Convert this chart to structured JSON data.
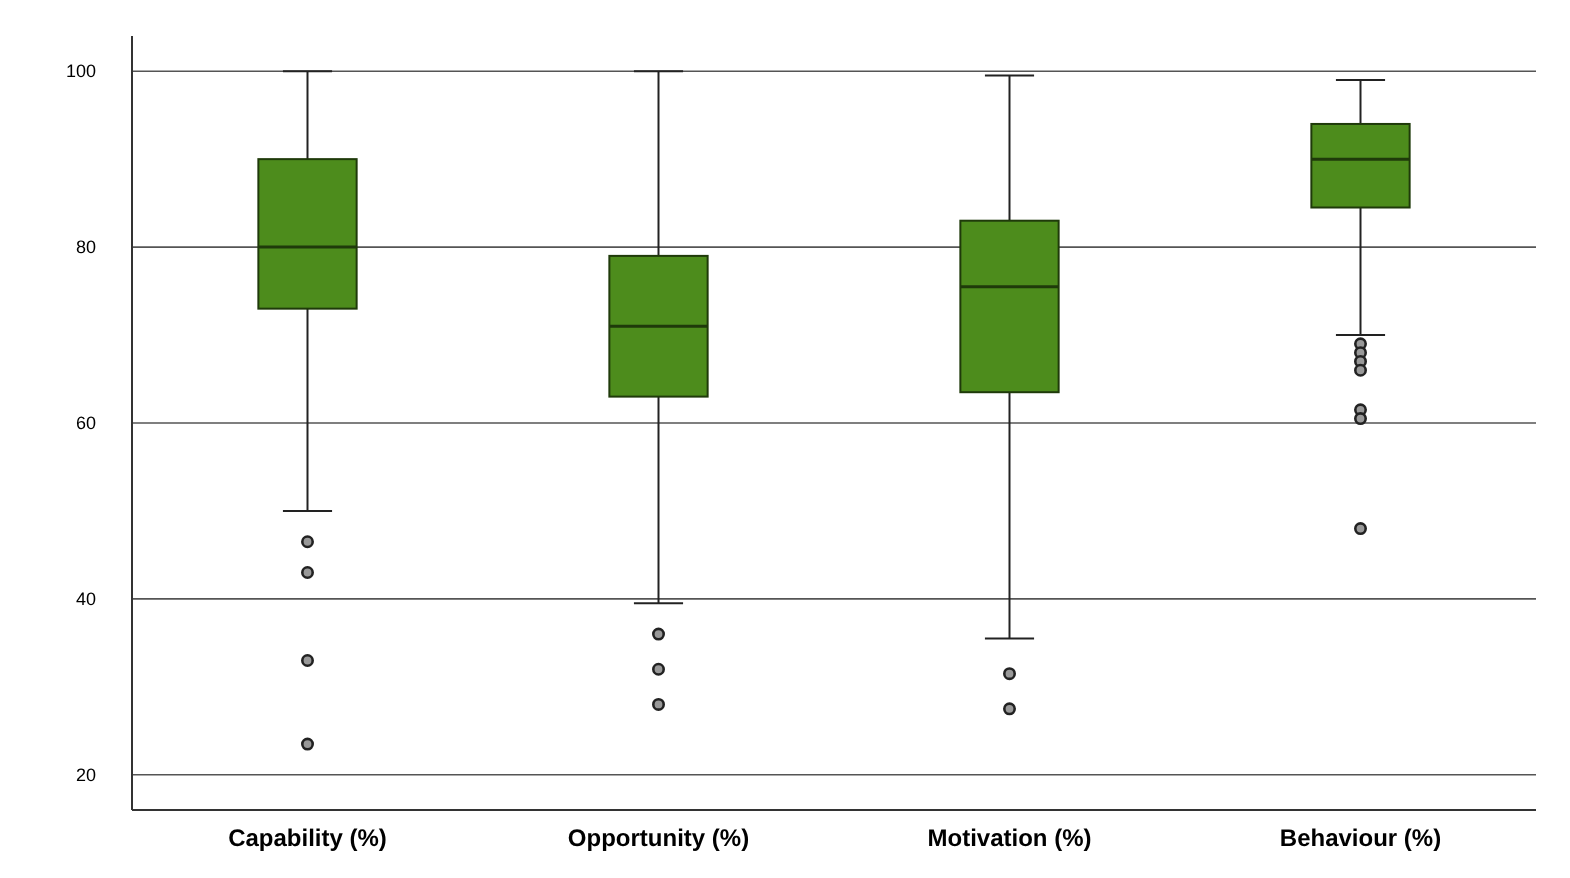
{
  "chart_data": {
    "type": "box",
    "categories": [
      "Capability (%)",
      "Opportunity (%)",
      "Motivation (%)",
      "Behaviour (%)"
    ],
    "boxes": [
      {
        "low": 50,
        "q1": 73,
        "median": 80,
        "q3": 90,
        "high": 100,
        "outliers": [
          46.5,
          43,
          33,
          23.5
        ]
      },
      {
        "low": 39.5,
        "q1": 63,
        "median": 71,
        "q3": 79,
        "high": 100,
        "outliers": [
          36,
          32,
          28
        ]
      },
      {
        "low": 35.5,
        "q1": 63.5,
        "median": 75.5,
        "q3": 83,
        "high": 99.5,
        "outliers": [
          31.5,
          27.5
        ]
      },
      {
        "low": 70,
        "q1": 84.5,
        "median": 90,
        "q3": 94,
        "high": 99,
        "outliers": [
          69,
          68,
          67,
          66,
          61.5,
          60.5,
          48
        ]
      }
    ],
    "color": "#4d8c1c",
    "ylim": [
      16,
      104
    ],
    "yticks": [
      20,
      40,
      60,
      80,
      100
    ],
    "grid": "y"
  }
}
